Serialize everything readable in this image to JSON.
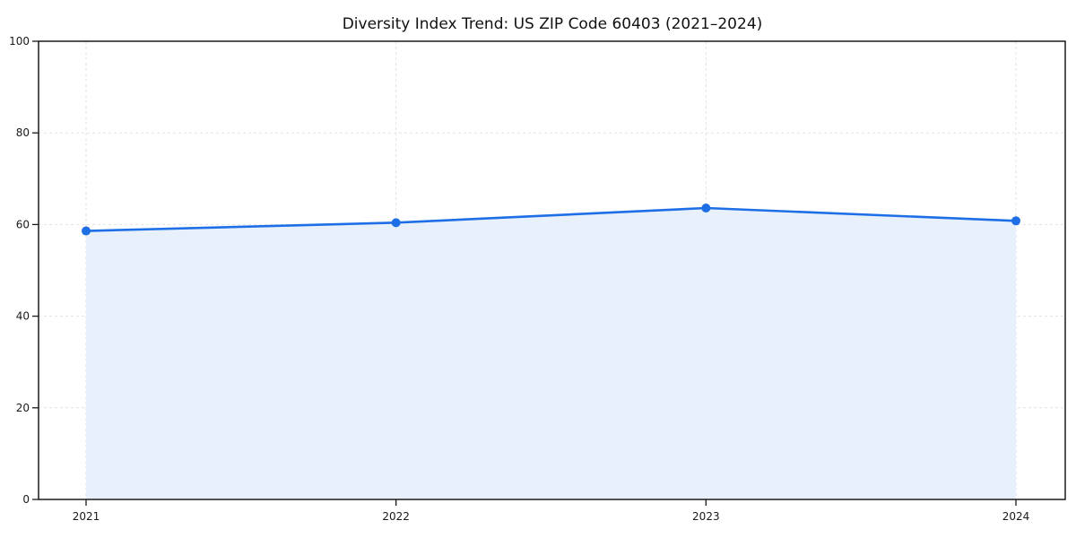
{
  "title": "Diversity Index Trend: US ZIP Code 60403 (2021–2024)",
  "chart_data": {
    "type": "area",
    "title": "Diversity Index Trend: US ZIP Code 60403 (2021–2024)",
    "x": [
      "2021",
      "2022",
      "2023",
      "2024"
    ],
    "series": [
      {
        "name": "Diversity Index",
        "values": [
          58.6,
          60.4,
          63.6,
          60.8
        ]
      }
    ],
    "xlabel": "",
    "ylabel": "",
    "ylim": [
      0,
      100
    ],
    "yticks": [
      0,
      20,
      40,
      60,
      80,
      100
    ],
    "grid": true,
    "grid_style": "dashed",
    "legend": false,
    "colors": {
      "line": "#1e6fe6",
      "marker": "#1e6fe6",
      "fill": "#e8f0fc",
      "grid": "#e2e2e2",
      "axis": "#1a1a1a",
      "text": "#1a1a1a",
      "background": "#ffffff"
    }
  }
}
